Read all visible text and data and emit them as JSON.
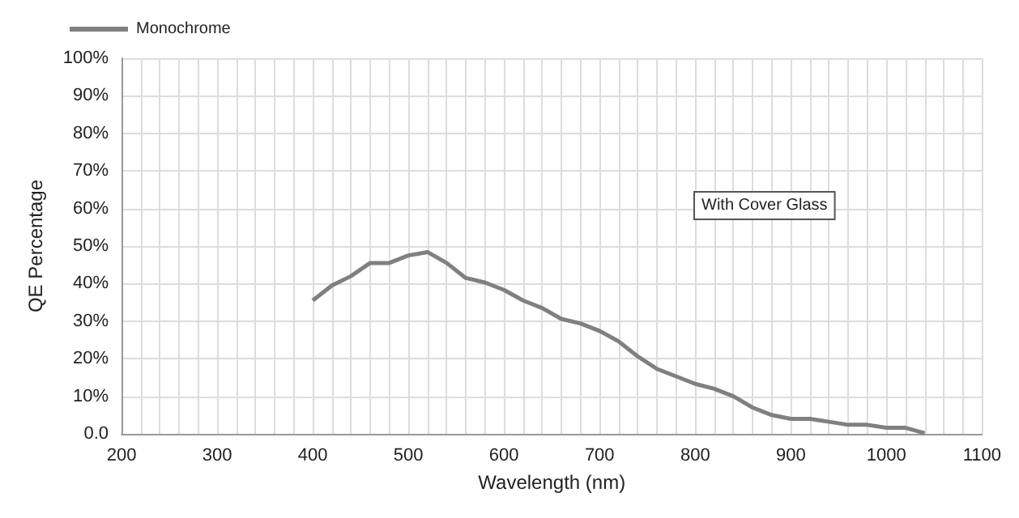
{
  "chart_data": {
    "type": "line",
    "xlabel": "Wavelength (nm)",
    "ylabel": "QE Percentage",
    "legend": "top left",
    "grid": true,
    "marker": "none",
    "line_style": "solid",
    "xlim": [
      200,
      1100
    ],
    "xticks": [
      200,
      {
        "value": 220,
        "label": null
      },
      {
        "value": 240,
        "label": null
      },
      {
        "value": 260,
        "label": null
      },
      {
        "value": 280,
        "label": null
      },
      300,
      {
        "value": 320,
        "label": null
      },
      {
        "value": 340,
        "label": null
      },
      {
        "value": 360,
        "label": null
      },
      {
        "value": 380,
        "label": null
      },
      400,
      {
        "value": 420,
        "label": null
      },
      {
        "value": 440,
        "label": null
      },
      {
        "value": 460,
        "label": null
      },
      {
        "value": 480,
        "label": null
      },
      500,
      {
        "value": 520,
        "label": null
      },
      {
        "value": 540,
        "label": null
      },
      {
        "value": 560,
        "label": null
      },
      {
        "value": 580,
        "label": null
      },
      600,
      {
        "value": 620,
        "label": null
      },
      {
        "value": 640,
        "label": null
      },
      {
        "value": 660,
        "label": null
      },
      {
        "value": 680,
        "label": null
      },
      700,
      {
        "value": 720,
        "label": null
      },
      {
        "value": 740,
        "label": null
      },
      {
        "value": 760,
        "label": null
      },
      {
        "value": 780,
        "label": null
      },
      800,
      {
        "value": 820,
        "label": null
      },
      {
        "value": 840,
        "label": null
      },
      {
        "value": 860,
        "label": null
      },
      {
        "value": 880,
        "label": null
      },
      900,
      {
        "value": 920,
        "label": null
      },
      {
        "value": 940,
        "label": null
      },
      {
        "value": 960,
        "label": null
      },
      {
        "value": 980,
        "label": null
      },
      1000,
      {
        "value": 1020,
        "label": null
      },
      {
        "value": 1040,
        "label": null
      },
      {
        "value": 1060,
        "label": null
      },
      {
        "value": 1080,
        "label": null
      },
      1100
    ],
    "ylim": [
      0,
      100
    ],
    "yticks": [
      {
        "value": 0,
        "label": "0.0"
      },
      {
        "value": 10,
        "label": "10%"
      },
      {
        "value": 20,
        "label": "20%"
      },
      {
        "value": 30,
        "label": "30%"
      },
      {
        "value": 40,
        "label": "40%"
      },
      {
        "value": 50,
        "label": "50%"
      },
      {
        "value": 60,
        "label": "60%"
      },
      {
        "value": 70,
        "label": "70%"
      },
      {
        "value": 80,
        "label": "80%"
      },
      {
        "value": 90,
        "label": "90%"
      },
      {
        "value": 100,
        "label": "100%"
      }
    ],
    "x": [
      400,
      420,
      440,
      460,
      480,
      500,
      520,
      540,
      560,
      580,
      600,
      620,
      640,
      660,
      680,
      700,
      720,
      740,
      760,
      780,
      800,
      820,
      840,
      860,
      880,
      900,
      920,
      940,
      960,
      980,
      1000,
      1020,
      1040
    ],
    "series": [
      {
        "name": "Monochrome",
        "color": "#808080",
        "values": [
          35.5,
          39.5,
          42,
          45.5,
          45.5,
          47.5,
          48.4,
          45.5,
          41.5,
          40.3,
          38.3,
          35.5,
          33.5,
          30.6,
          29.4,
          27.4,
          24.6,
          20.6,
          17.3,
          15.3,
          13.3,
          12,
          10,
          7,
          5,
          4,
          4,
          3.2,
          2.4,
          2.4,
          1.6,
          1.6,
          0.2
        ]
      }
    ],
    "annotations": [
      "With Cover Glass"
    ]
  }
}
